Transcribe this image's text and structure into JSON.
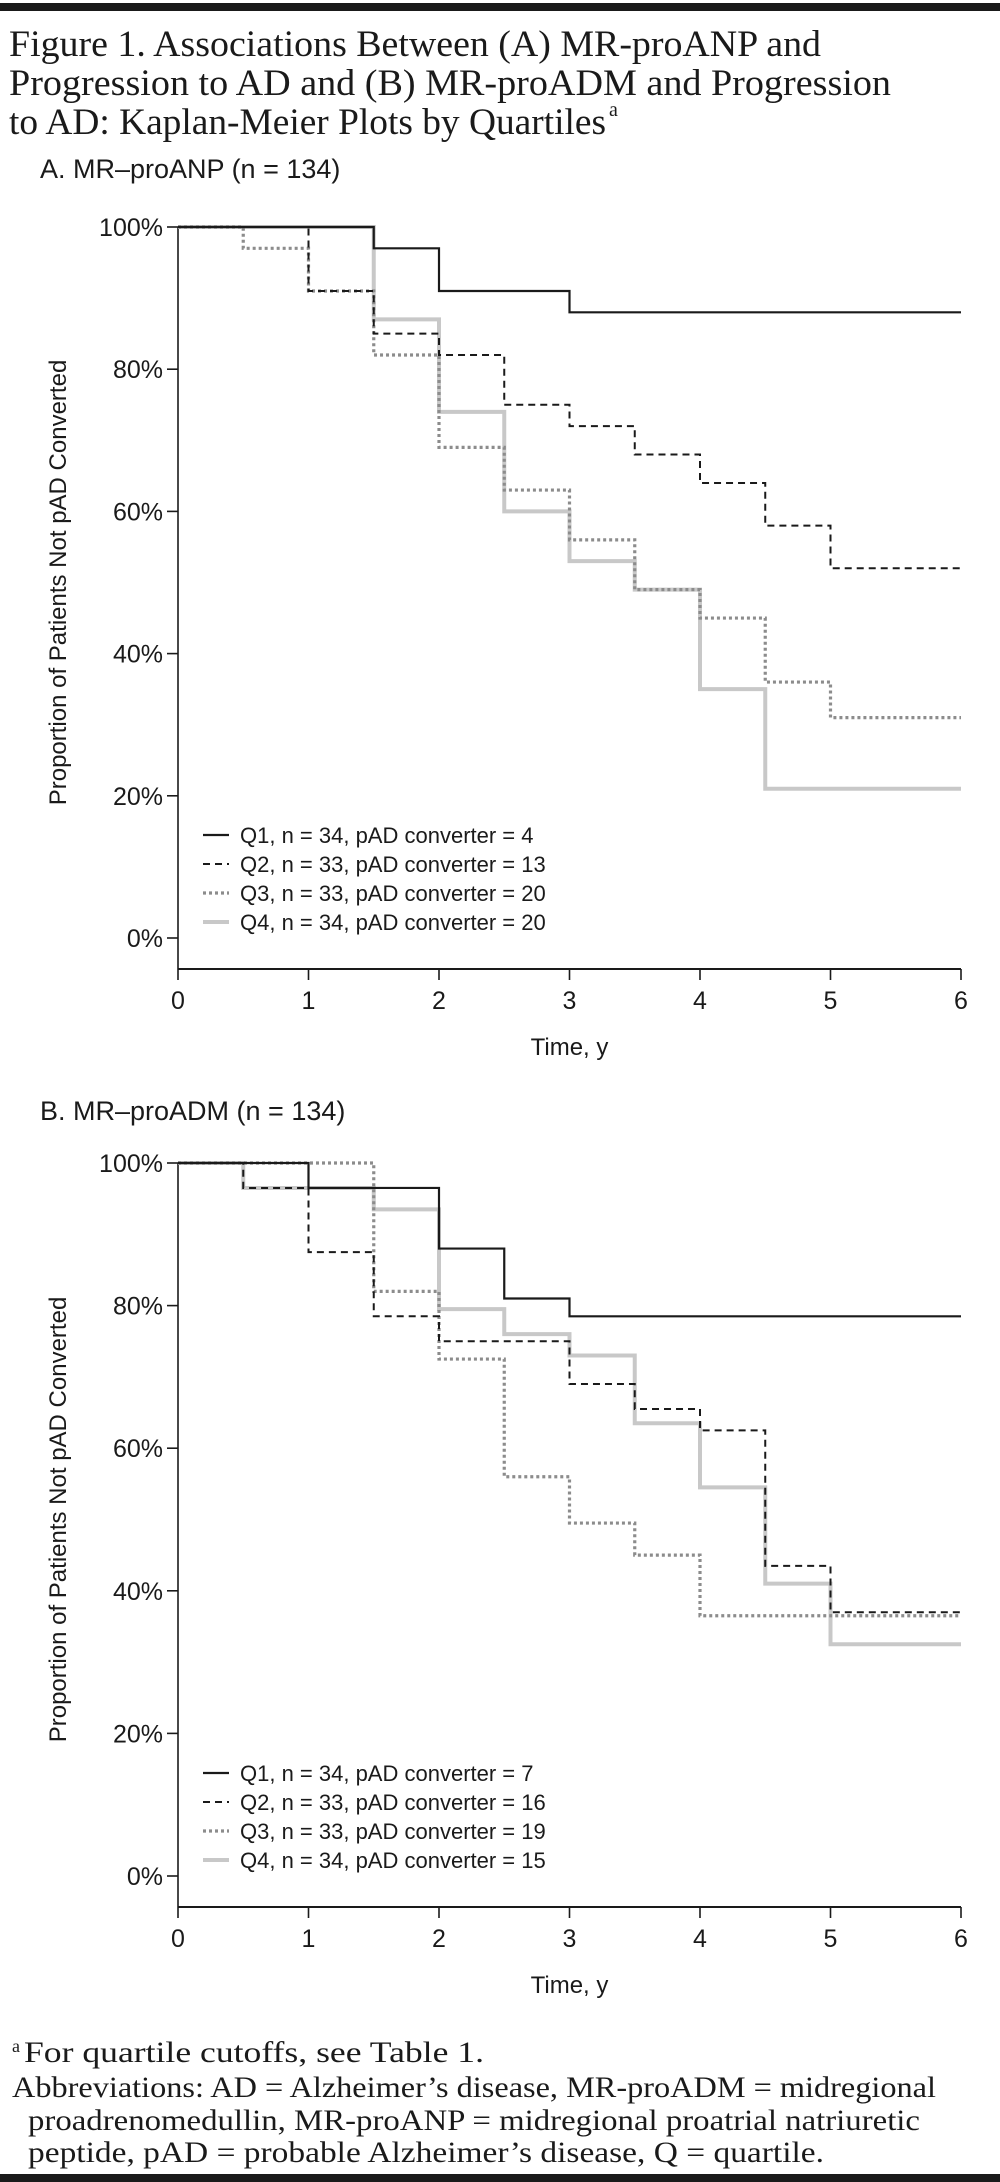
{
  "figure": {
    "title_lines": [
      "Figure 1. Associations Between (A) MR-proANP and",
      "Progression to AD and (B) MR-proADM and Progression",
      "to AD: Kaplan-Meier Plots by Quartiles"
    ],
    "title_superscript": "a",
    "footnote_marker": "a",
    "footnote": "For quartile cutoffs, see Table 1.",
    "abbreviations_lines": [
      "Abbreviations: AD = Alzheimer’s disease, MR-proADM = midregional",
      "proadrenomedullin, MR-proANP = midregional proatrial natriuretic",
      "peptide, pAD = probable Alzheimer’s disease, Q = quartile."
    ]
  },
  "styles": {
    "Q1": {
      "color": "#1a1a1a",
      "dash": "solid"
    },
    "Q2": {
      "color": "#1a1a1a",
      "dash": "dashed"
    },
    "Q3": {
      "color": "#8c8c8c",
      "dash": "dotted"
    },
    "Q4": {
      "color": "#c8c8c8",
      "dash": "solid-thick"
    }
  },
  "chart_data": [
    {
      "type": "line",
      "subtype": "kaplan-meier step",
      "title": "A. MR–proANP (n = 134)",
      "xlabel": "Time, y",
      "ylabel": "Proportion of Patients Not pAD Converted",
      "xlim": [
        0,
        6
      ],
      "ylim": [
        0,
        100
      ],
      "xticks": [
        "0",
        "1",
        "2",
        "3",
        "4",
        "5",
        "6"
      ],
      "yticks": [
        {
          "v": 0,
          "label": "0%"
        },
        {
          "v": 20,
          "label": "20%"
        },
        {
          "v": 40,
          "label": "40%"
        },
        {
          "v": 60,
          "label": "60%"
        },
        {
          "v": 80,
          "label": "80%"
        },
        {
          "v": 100,
          "label": "100%"
        }
      ],
      "grid": false,
      "legend_position": "bottom-left",
      "series": [
        {
          "name": "Q1, n = 34, pAD converter = 4",
          "key": "Q1",
          "x": [
            0,
            1.5,
            2,
            3,
            6
          ],
          "y": [
            100,
            97,
            91,
            88,
            88
          ]
        },
        {
          "name": "Q2, n = 33, pAD converter = 13",
          "key": "Q2",
          "x": [
            0,
            1,
            1.5,
            2,
            2.5,
            3,
            3.5,
            4,
            4.5,
            5,
            6
          ],
          "y": [
            100,
            91,
            85,
            82,
            75,
            72,
            68,
            64,
            58,
            52,
            52
          ]
        },
        {
          "name": "Q3, n = 33, pAD converter = 20",
          "key": "Q3",
          "x": [
            0,
            0.5,
            1,
            1.5,
            2,
            2.5,
            3,
            3.5,
            4,
            4.5,
            5,
            6
          ],
          "y": [
            100,
            97,
            91,
            82,
            69,
            63,
            56,
            49,
            45,
            36,
            31,
            31
          ]
        },
        {
          "name": "Q4, n = 34, pAD converter = 20",
          "key": "Q4",
          "x": [
            0,
            1.5,
            2,
            2.5,
            3,
            3.5,
            4,
            4.5,
            6
          ],
          "y": [
            100,
            87,
            74,
            60,
            53,
            49,
            35,
            21,
            21
          ]
        }
      ]
    },
    {
      "type": "line",
      "subtype": "kaplan-meier step",
      "title": "B. MR–proADM (n = 134)",
      "xlabel": "Time, y",
      "ylabel": "Proportion of Patients Not pAD Converted",
      "xlim": [
        0,
        6
      ],
      "ylim": [
        0,
        100
      ],
      "xticks": [
        "0",
        "1",
        "2",
        "3",
        "4",
        "5",
        "6"
      ],
      "yticks": [
        {
          "v": 0,
          "label": "0%"
        },
        {
          "v": 20,
          "label": "20%"
        },
        {
          "v": 40,
          "label": "40%"
        },
        {
          "v": 60,
          "label": "60%"
        },
        {
          "v": 80,
          "label": "80%"
        },
        {
          "v": 100,
          "label": "100%"
        }
      ],
      "grid": false,
      "legend_position": "bottom-left",
      "series": [
        {
          "name": "Q1, n = 34, pAD converter = 7",
          "key": "Q1",
          "x": [
            0,
            1,
            2,
            2.5,
            3,
            6
          ],
          "y": [
            100,
            96.5,
            88,
            81,
            78.5,
            78.5
          ]
        },
        {
          "name": "Q2, n = 33, pAD converter = 16",
          "key": "Q2",
          "x": [
            0,
            0.5,
            1,
            1.5,
            2,
            3,
            3.5,
            4,
            4.5,
            5,
            6
          ],
          "y": [
            100,
            96.5,
            87.5,
            78.5,
            75,
            69,
            65.5,
            62.5,
            43.5,
            37,
            37
          ]
        },
        {
          "name": "Q3, n = 33, pAD converter = 19",
          "key": "Q3",
          "x": [
            0,
            1.5,
            2,
            2.5,
            3,
            3.5,
            4,
            6
          ],
          "y": [
            100,
            82,
            72.5,
            56,
            49.5,
            45,
            36.5,
            36.5
          ]
        },
        {
          "name": "Q4, n = 34, pAD converter = 15",
          "key": "Q4",
          "x": [
            0,
            0.5,
            1.5,
            2,
            2.5,
            3,
            3.5,
            4,
            4.5,
            5,
            6
          ],
          "y": [
            100,
            96.5,
            93.5,
            79.5,
            76,
            73,
            63.5,
            54.5,
            41,
            32.5,
            32.5
          ]
        }
      ]
    }
  ]
}
